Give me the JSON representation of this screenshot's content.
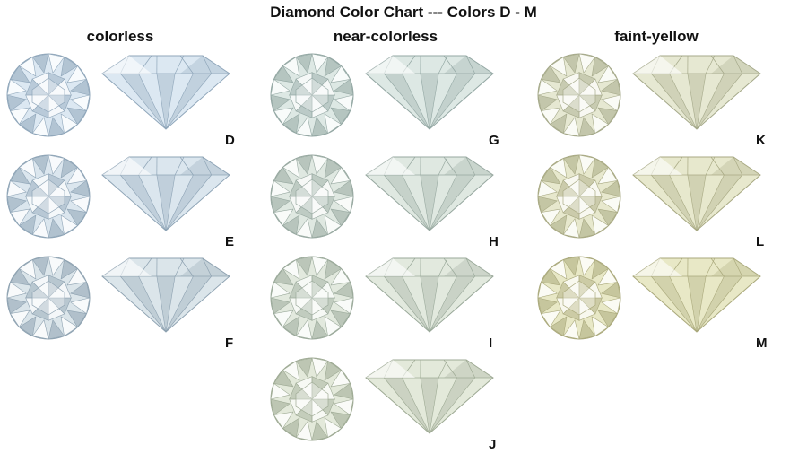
{
  "title": "Diamond Color Chart --- Colors D - M",
  "groups": [
    {
      "label": "colorless"
    },
    {
      "label": "near-colorless"
    },
    {
      "label": "faint-yellow"
    }
  ],
  "grades": [
    {
      "letter": "D",
      "tint": "#dce8f2",
      "edge": "#8fa6ba"
    },
    {
      "letter": "E",
      "tint": "#dbe6ee",
      "edge": "#8ea4b6"
    },
    {
      "letter": "F",
      "tint": "#dbe5ea",
      "edge": "#8ea2b1"
    },
    {
      "letter": "G",
      "tint": "#dde8e4",
      "edge": "#93a7a3"
    },
    {
      "letter": "H",
      "tint": "#dfe8e1",
      "edge": "#97a8a0"
    },
    {
      "letter": "I",
      "tint": "#e2e9de",
      "edge": "#9aa99a"
    },
    {
      "letter": "J",
      "tint": "#e3e9da",
      "edge": "#9eaa94"
    },
    {
      "letter": "K",
      "tint": "#e6e8d2",
      "edge": "#a5a98a"
    },
    {
      "letter": "L",
      "tint": "#e7e8cd",
      "edge": "#a8a983"
    },
    {
      "letter": "M",
      "tint": "#e8e8c6",
      "edge": "#aaa97c"
    }
  ]
}
